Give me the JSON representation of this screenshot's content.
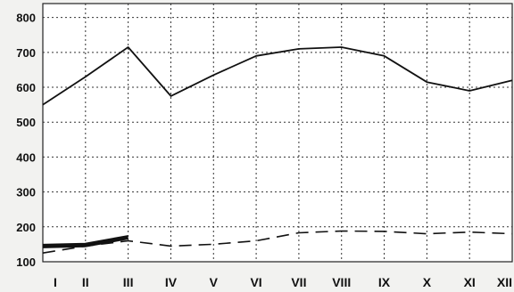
{
  "chart_data": {
    "type": "line",
    "title": "",
    "xlabel": "",
    "ylabel": "",
    "categories": [
      "I",
      "II",
      "III",
      "IV",
      "V",
      "VI",
      "VII",
      "VIII",
      "IX",
      "X",
      "XI",
      "XII"
    ],
    "y_ticks": [
      "800",
      "700",
      "600",
      "500",
      "400",
      "300",
      "200",
      "100"
    ],
    "ylim": [
      100,
      840
    ],
    "grid": true,
    "legend": "none",
    "series": [
      {
        "style": "solid",
        "color": "#111111",
        "values": [
          550,
          630,
          715,
          575,
          635,
          690,
          710,
          715,
          690,
          615,
          590,
          620
        ]
      },
      {
        "style": "dashed",
        "color": "#111111",
        "values": [
          125,
          145,
          160,
          145,
          150,
          160,
          183,
          188,
          187,
          180,
          185,
          180
        ]
      },
      {
        "style": "bold",
        "color": "#111111",
        "values": [
          145,
          148,
          170,
          null,
          null,
          null,
          null,
          null,
          null,
          null,
          null,
          null
        ]
      }
    ]
  }
}
